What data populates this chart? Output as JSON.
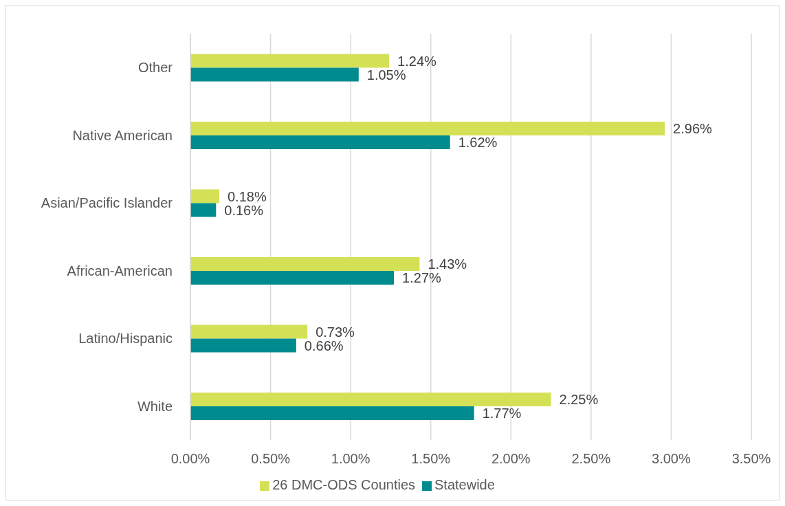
{
  "chart_data": {
    "type": "bar",
    "orientation": "horizontal",
    "categories": [
      "Other",
      "Native American",
      "Asian/Pacific Islander",
      "African-American",
      "Latino/Hispanic",
      "White"
    ],
    "series": [
      {
        "name": "26 DMC-ODS Counties",
        "color": "#d4e157",
        "values": [
          1.24,
          2.96,
          0.18,
          1.43,
          0.73,
          2.25
        ],
        "value_labels": [
          "1.24%",
          "2.96%",
          "0.18%",
          "1.43%",
          "0.73%",
          "2.25%"
        ]
      },
      {
        "name": "Statewide",
        "color": "#008b8e",
        "values": [
          1.05,
          1.62,
          0.16,
          1.27,
          0.66,
          1.77
        ],
        "value_labels": [
          "1.05%",
          "1.62%",
          "0.16%",
          "1.27%",
          "0.66%",
          "1.77%"
        ]
      }
    ],
    "xlim": [
      0,
      3.5
    ],
    "xticks": [
      {
        "value": 0,
        "label": "0.00%"
      },
      {
        "value": 0.5,
        "label": "0.50%"
      },
      {
        "value": 1,
        "label": "1.00%"
      },
      {
        "value": 1.5,
        "label": "1.50%"
      },
      {
        "value": 2,
        "label": "2.00%"
      },
      {
        "value": 2.5,
        "label": "2.50%"
      },
      {
        "value": 3,
        "label": "3.00%"
      },
      {
        "value": 3.5,
        "label": "3.50%"
      }
    ],
    "grid": "x",
    "legend": "bottom"
  }
}
